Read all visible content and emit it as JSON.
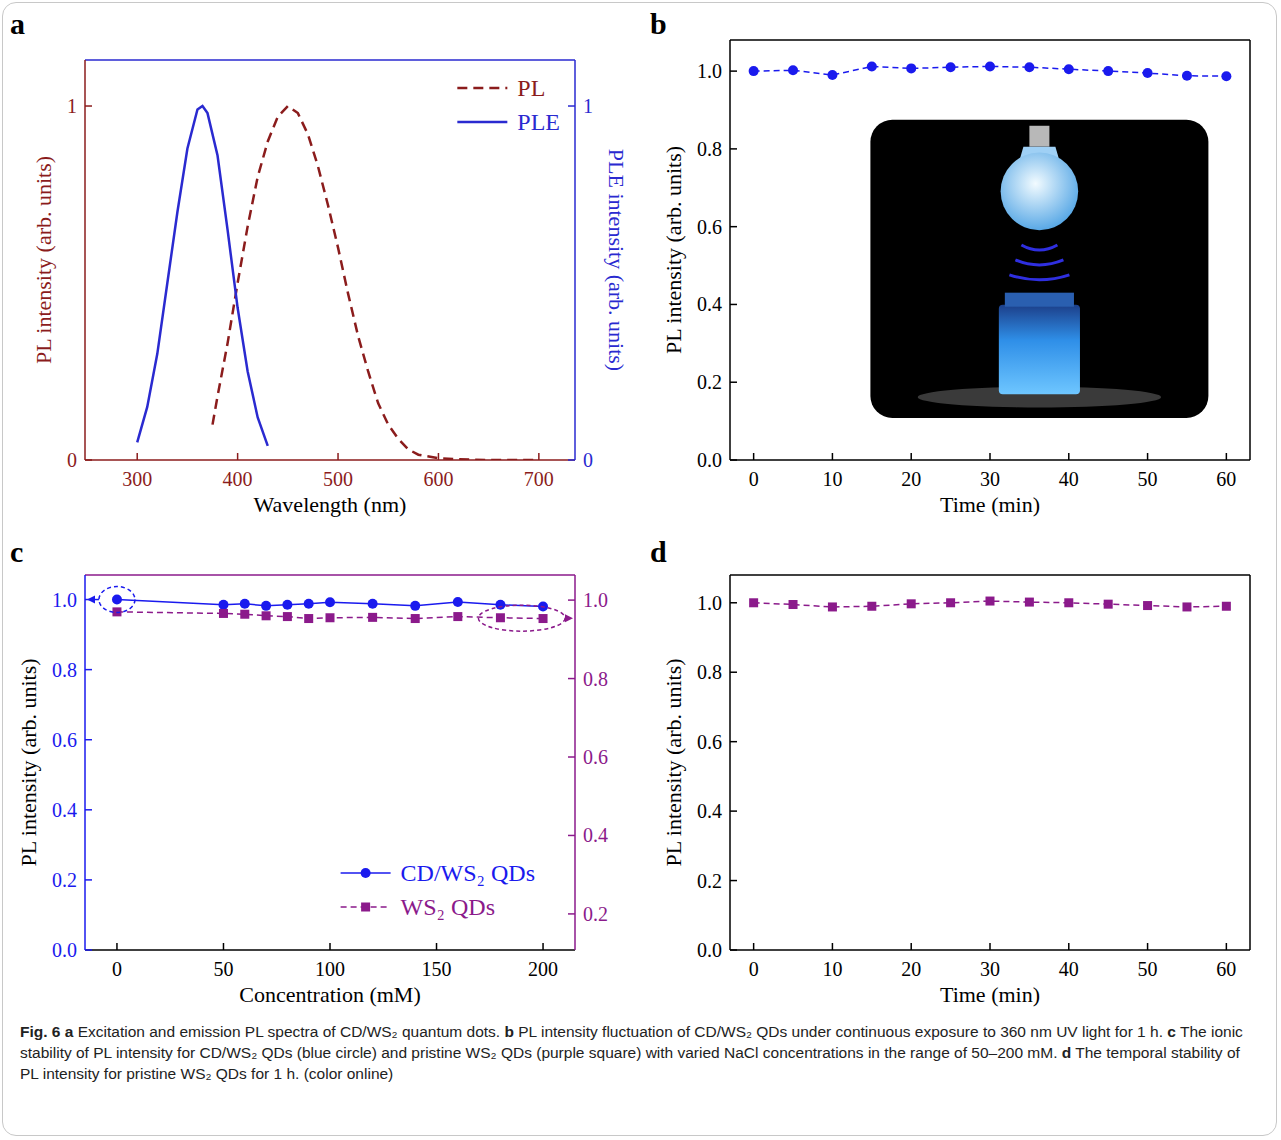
{
  "chart_data": [
    {
      "panel": "a",
      "type": "line",
      "x_label": "Wavelength (nm)",
      "y_label": "PL intensity (arb. units)",
      "y2_label": "PLE intensity (arb. units)",
      "xlim": [
        248,
        736
      ],
      "xticks": [
        300,
        400,
        500,
        600,
        700
      ],
      "ylim": [
        0,
        1.13
      ],
      "yticks": [
        0,
        1
      ],
      "y2lim": [
        0,
        1.13
      ],
      "y2ticks": [
        0,
        1
      ],
      "legend": "upper right",
      "series": [
        {
          "name": "PL",
          "color": "#8b1c1c",
          "line_style": "dashed",
          "x": [
            375,
            380,
            390,
            400,
            410,
            420,
            430,
            440,
            450,
            460,
            470,
            480,
            490,
            500,
            510,
            520,
            530,
            540,
            550,
            560,
            570,
            580,
            600,
            620,
            650,
            700
          ],
          "values": [
            0.1,
            0.18,
            0.33,
            0.5,
            0.66,
            0.8,
            0.9,
            0.97,
            1.0,
            0.98,
            0.92,
            0.83,
            0.72,
            0.6,
            0.47,
            0.35,
            0.25,
            0.16,
            0.1,
            0.06,
            0.03,
            0.015,
            0.005,
            0.002,
            0,
            0
          ]
        },
        {
          "name": "PLE",
          "color": "#2a2ad0",
          "line_style": "solid",
          "axis": "y2",
          "x": [
            300,
            310,
            320,
            330,
            340,
            350,
            360,
            365,
            370,
            380,
            390,
            400,
            410,
            420,
            430
          ],
          "values": [
            0.05,
            0.15,
            0.3,
            0.5,
            0.7,
            0.88,
            0.99,
            1.0,
            0.98,
            0.86,
            0.65,
            0.43,
            0.25,
            0.12,
            0.04
          ]
        }
      ]
    },
    {
      "panel": "b",
      "type": "line",
      "x_label": "Time (min)",
      "y_label": "PL intensity (arb. units)",
      "xlim": [
        -3,
        63
      ],
      "xticks": [
        0,
        10,
        20,
        30,
        40,
        50,
        60
      ],
      "ylim": [
        0,
        1.08
      ],
      "yticks": [
        {
          "value": 0,
          "label": "0.0"
        },
        0.2,
        0.4,
        0.6,
        0.8,
        {
          "value": 1,
          "label": "1.0"
        }
      ],
      "x": [
        0,
        5,
        10,
        15,
        20,
        25,
        30,
        35,
        40,
        45,
        50,
        55,
        60
      ],
      "series": [
        {
          "color": "#1a1aee",
          "marker": "circle",
          "line_style": "dashed",
          "values": [
            1.0,
            1.002,
            0.99,
            1.012,
            1.007,
            1.01,
            1.012,
            1.01,
            1.005,
            1.0,
            0.995,
            0.988,
            0.987
          ]
        }
      ]
    },
    {
      "panel": "c",
      "type": "line",
      "x_label": "Concentration (mM)",
      "y_label": "PL intensity (arb. units)",
      "xlim": [
        -15,
        215
      ],
      "xticks": [
        0,
        50,
        100,
        150,
        200
      ],
      "ylim": [
        0,
        1.07
      ],
      "yticks": [
        {
          "value": 0,
          "label": "0.0"
        },
        0.2,
        0.4,
        0.6,
        0.8,
        {
          "value": 1,
          "label": "1.0"
        }
      ],
      "y2lim": [
        0.108,
        1.064
      ],
      "y2ticks": [
        0.2,
        0.4,
        0.6,
        0.8,
        {
          "value": 1,
          "label": "1.0"
        }
      ],
      "legend": "lower right",
      "x": [
        0,
        50,
        60,
        70,
        80,
        90,
        100,
        120,
        140,
        160,
        180,
        200
      ],
      "series": [
        {
          "name": "CD/WS₂ QDs",
          "color": "#1a1aee",
          "marker": "circle",
          "line_style": "solid",
          "values": [
            1.0,
            0.985,
            0.988,
            0.982,
            0.985,
            0.988,
            0.992,
            0.988,
            0.982,
            0.993,
            0.985,
            0.98
          ]
        },
        {
          "name": "WS₂ QDs",
          "color": "#8b1a8b",
          "marker": "square",
          "line_style": "dashed",
          "axis": "y2",
          "values": [
            0.97,
            0.966,
            0.964,
            0.96,
            0.958,
            0.953,
            0.955,
            0.956,
            0.953,
            0.958,
            0.955,
            0.953
          ]
        }
      ]
    },
    {
      "panel": "d",
      "type": "line",
      "x_label": "Time (min)",
      "y_label": "PL intensity (arb. units)",
      "xlim": [
        -3,
        63
      ],
      "xticks": [
        0,
        10,
        20,
        30,
        40,
        50,
        60
      ],
      "ylim": [
        0,
        1.08
      ],
      "yticks": [
        {
          "value": 0,
          "label": "0.0"
        },
        0.2,
        0.4,
        0.6,
        0.8,
        {
          "value": 1,
          "label": "1.0"
        }
      ],
      "x": [
        0,
        5,
        10,
        15,
        20,
        25,
        30,
        35,
        40,
        45,
        50,
        55,
        60
      ],
      "series": [
        {
          "color": "#8b1a8b",
          "marker": "square",
          "line_style": "dashed",
          "values": [
            1.0,
            0.995,
            0.988,
            0.99,
            0.997,
            1.0,
            1.005,
            1.002,
            1.0,
            0.996,
            0.992,
            0.988,
            0.99
          ]
        }
      ]
    }
  ],
  "caption": {
    "label": "Fig. 6",
    "parts": [
      {
        "letter": "a",
        "text": "Excitation and emission PL spectra of CD/WS₂ quantum dots."
      },
      {
        "letter": "b",
        "text": "PL intensity fluctuation of CD/WS₂ QDs under continuous exposure to 360 nm UV light for 1 h."
      },
      {
        "letter": "c",
        "text": "The ionic stability of PL intensity for CD/WS₂ QDs (blue circle) and pristine WS₂ QDs (purple square) with varied NaCl concentrations in the range of 50–200 mM."
      },
      {
        "letter": "d",
        "text": "The temporal stability of PL intensity for pristine WS₂ QDs for 1 h."
      }
    ],
    "note": "(color online)"
  }
}
